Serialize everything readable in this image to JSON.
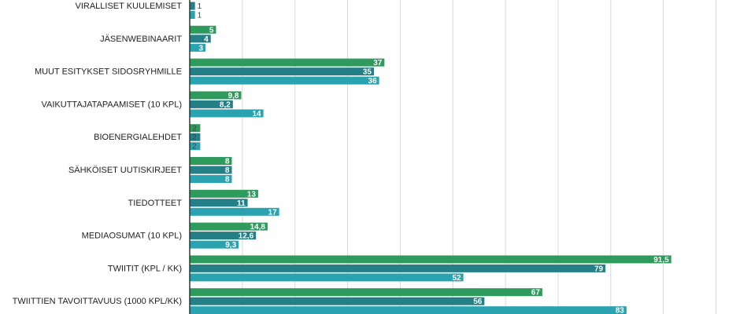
{
  "chart_data": {
    "type": "bar",
    "orientation": "horizontal",
    "categories": [
      "VIRALLISET KUULEMISET",
      "JÄSENWEBINAARIT",
      "MUUT ESITYKSET SIDOSRYHMILLE",
      "VAIKUTTAJATAPAAMISET (10 KPL)",
      "BIOENERGIALEHDET",
      "SÄHKÖISET UUTISKIRJEET",
      "TIEDOTTEET",
      "MEDIAOSUMAT (10 KPL)",
      "TWIITIT (KPL / KK)",
      "TWIITTIEN TAVOITTAVUUS (1000 KPL/KK)"
    ],
    "series": [
      {
        "color": "#2e9a5c",
        "values": [
          null,
          5,
          37,
          9.8,
          2,
          8,
          13,
          14.8,
          91.5,
          67
        ],
        "labels": [
          "",
          "5",
          "37",
          "9,8",
          "2",
          "8",
          "13",
          "14,8",
          "91,5",
          "67"
        ]
      },
      {
        "color": "#247f86",
        "values": [
          1,
          4,
          35,
          8.2,
          2,
          8,
          11,
          12.6,
          79,
          56
        ],
        "labels": [
          "1",
          "4",
          "35",
          "8,2",
          "2",
          "8",
          "11",
          "12,6",
          "79",
          "56"
        ]
      },
      {
        "color": "#2aa3b0",
        "values": [
          1,
          3,
          36,
          14,
          2,
          8,
          17,
          9.3,
          52,
          83
        ],
        "labels": [
          "1",
          "3",
          "36",
          "14",
          "2",
          "8",
          "17",
          "9,3",
          "52",
          "83"
        ]
      }
    ],
    "xlim": [
      0,
      100
    ],
    "grid": true,
    "gridline_color": "#d9d9d9"
  }
}
